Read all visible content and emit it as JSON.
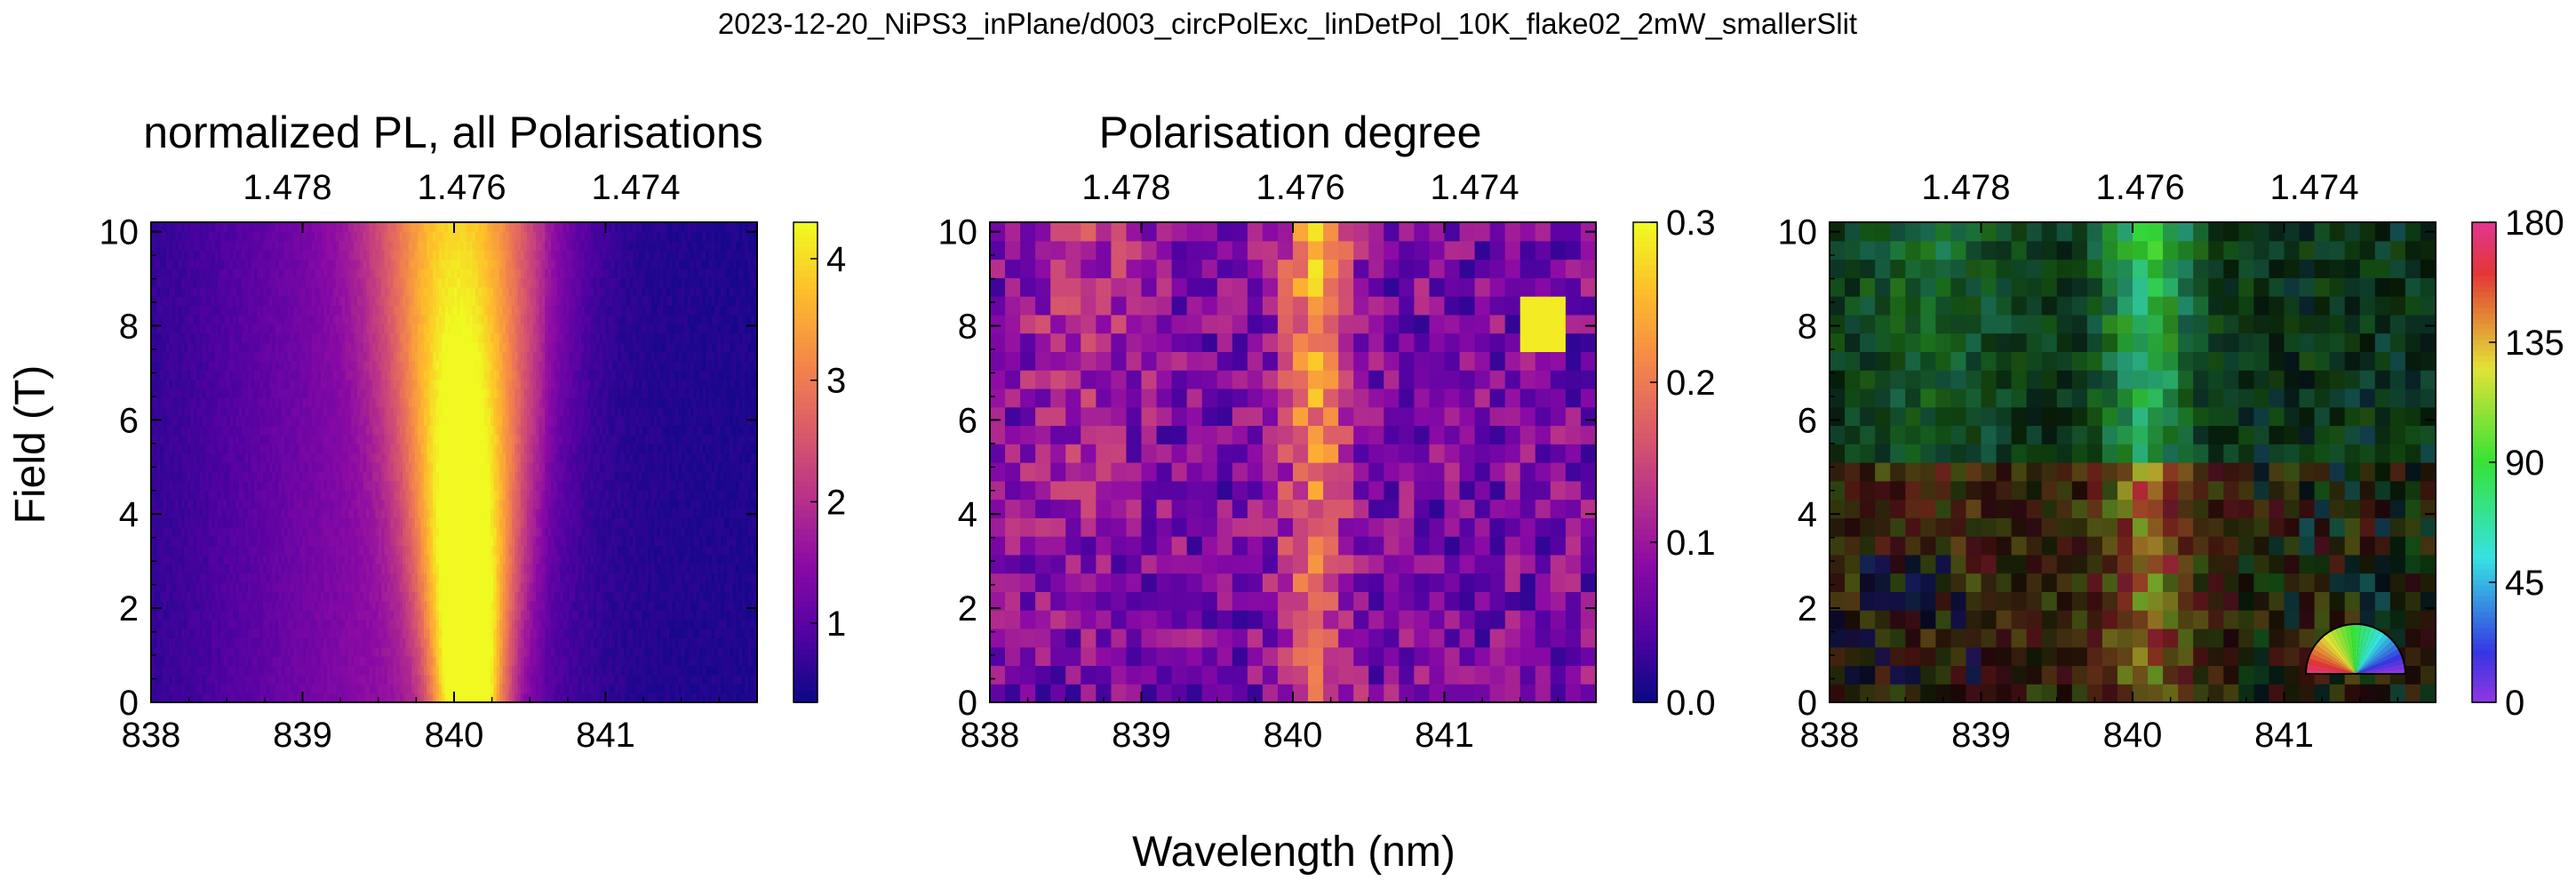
{
  "figure": {
    "suptitle": "2023-12-20_NiPS3_inPlane/d003_circPolExc_linDetPol_10K_flake02_2mW_smallerSlit",
    "xlabel": "Wavelength (nm)",
    "ylabel": "Field (T)"
  },
  "chart_data": [
    {
      "type": "heatmap",
      "title": "normalized PL, all Polarisations",
      "xlim": [
        838,
        842
      ],
      "ylim": [
        0,
        10.2
      ],
      "x_ticks": [
        "838",
        "839",
        "840",
        "841"
      ],
      "y_ticks": [
        "0",
        "2",
        "4",
        "6",
        "8",
        "10"
      ],
      "top_ticks": [
        {
          "at": 838.9,
          "label": "1.478"
        },
        {
          "at": 840.05,
          "label": "1.476"
        },
        {
          "at": 841.2,
          "label": "1.474"
        }
      ],
      "colormap": "plasma",
      "colorbar_range": [
        0.35,
        4.3
      ],
      "colorbar_ticks": [
        "1",
        "2",
        "3",
        "4"
      ],
      "peak": {
        "center_nm_at_0T": 840.1,
        "center_nm_at_10T": 840.05,
        "max_value": 4.2
      },
      "grid": {
        "cols": 200,
        "rows": 52
      }
    },
    {
      "type": "heatmap",
      "title": "Polarisation degree",
      "xlim": [
        838,
        842
      ],
      "ylim": [
        0,
        10.2
      ],
      "x_ticks": [
        "838",
        "839",
        "840",
        "841"
      ],
      "y_ticks": [
        "0",
        "2",
        "4",
        "6",
        "8",
        "10"
      ],
      "top_ticks": [
        {
          "at": 838.9,
          "label": "1.478"
        },
        {
          "at": 840.05,
          "label": "1.476"
        },
        {
          "at": 841.2,
          "label": "1.474"
        }
      ],
      "colormap": "plasma",
      "colorbar_range": [
        0.0,
        0.3
      ],
      "colorbar_ticks": [
        "0.0",
        "0.1",
        "0.2",
        "0.3"
      ],
      "grid": {
        "cols": 40,
        "rows": 26
      }
    },
    {
      "type": "heatmap",
      "title": "",
      "xlim": [
        838,
        842
      ],
      "ylim": [
        0,
        10.2
      ],
      "x_ticks": [
        "838",
        "839",
        "840",
        "841"
      ],
      "y_ticks": [
        "0",
        "2",
        "4",
        "6",
        "8",
        "10"
      ],
      "top_ticks": [
        {
          "at": 838.9,
          "label": "1.478"
        },
        {
          "at": 840.05,
          "label": "1.476"
        },
        {
          "at": 841.2,
          "label": "1.474"
        }
      ],
      "colormap": "hsv-angle",
      "colorbar_range": [
        0,
        180
      ],
      "colorbar_ticks": [
        "0",
        "45",
        "90",
        "135",
        "180"
      ],
      "inset": "polarization-angle-color-wheel",
      "grid": {
        "cols": 40,
        "rows": 26
      }
    }
  ]
}
